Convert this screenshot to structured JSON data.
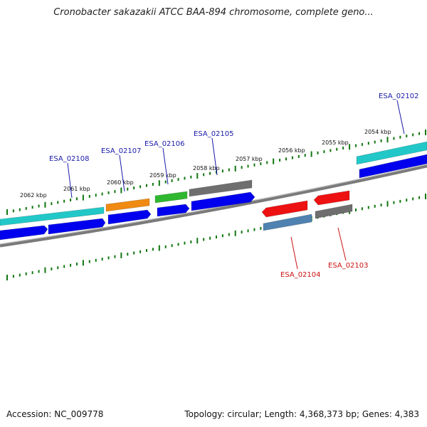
{
  "title": "Cronobacter sakazakii ATCC BAA-894 chromosome, complete geno...",
  "footer": {
    "accession": "Accession: NC_009778",
    "summary": "Topology: circular; Length: 4,368,373 bp; Genes: 4,383"
  },
  "colors": {
    "backbone": "#808080",
    "tick": "#117711",
    "forward_label": "#1a1aaa",
    "reverse_label": "#cc1111",
    "cds": "#0000ee",
    "cyan": "#22c8c8",
    "orange": "#f08a10",
    "green": "#2fb82f",
    "gray": "#6e6e6e",
    "red": "#ee1111",
    "steel": "#4f82b0"
  },
  "ticks": [
    {
      "label": "2062 kbp"
    },
    {
      "label": "2061 kbp"
    },
    {
      "label": "2060 kbp"
    },
    {
      "label": "2059 kbp"
    },
    {
      "label": "2058 kbp"
    },
    {
      "label": "2057 kbp"
    },
    {
      "label": "2056 kbp"
    },
    {
      "label": "2055 kbp"
    },
    {
      "label": "2054 kbp"
    }
  ],
  "genes": [
    {
      "name": "ESA_02108",
      "strand": "forward",
      "gene_color": "cyan"
    },
    {
      "name": "ESA_02107",
      "strand": "forward",
      "gene_color": "orange"
    },
    {
      "name": "ESA_02106",
      "strand": "forward",
      "gene_color": "green"
    },
    {
      "name": "ESA_02105",
      "strand": "forward",
      "gene_color": "gray"
    },
    {
      "name": "ESA_02104",
      "strand": "reverse",
      "gene_color": "steel"
    },
    {
      "name": "ESA_02103",
      "strand": "reverse",
      "gene_color": "gray"
    },
    {
      "name": "ESA_02102",
      "strand": "forward",
      "gene_color": "cyan"
    }
  ]
}
